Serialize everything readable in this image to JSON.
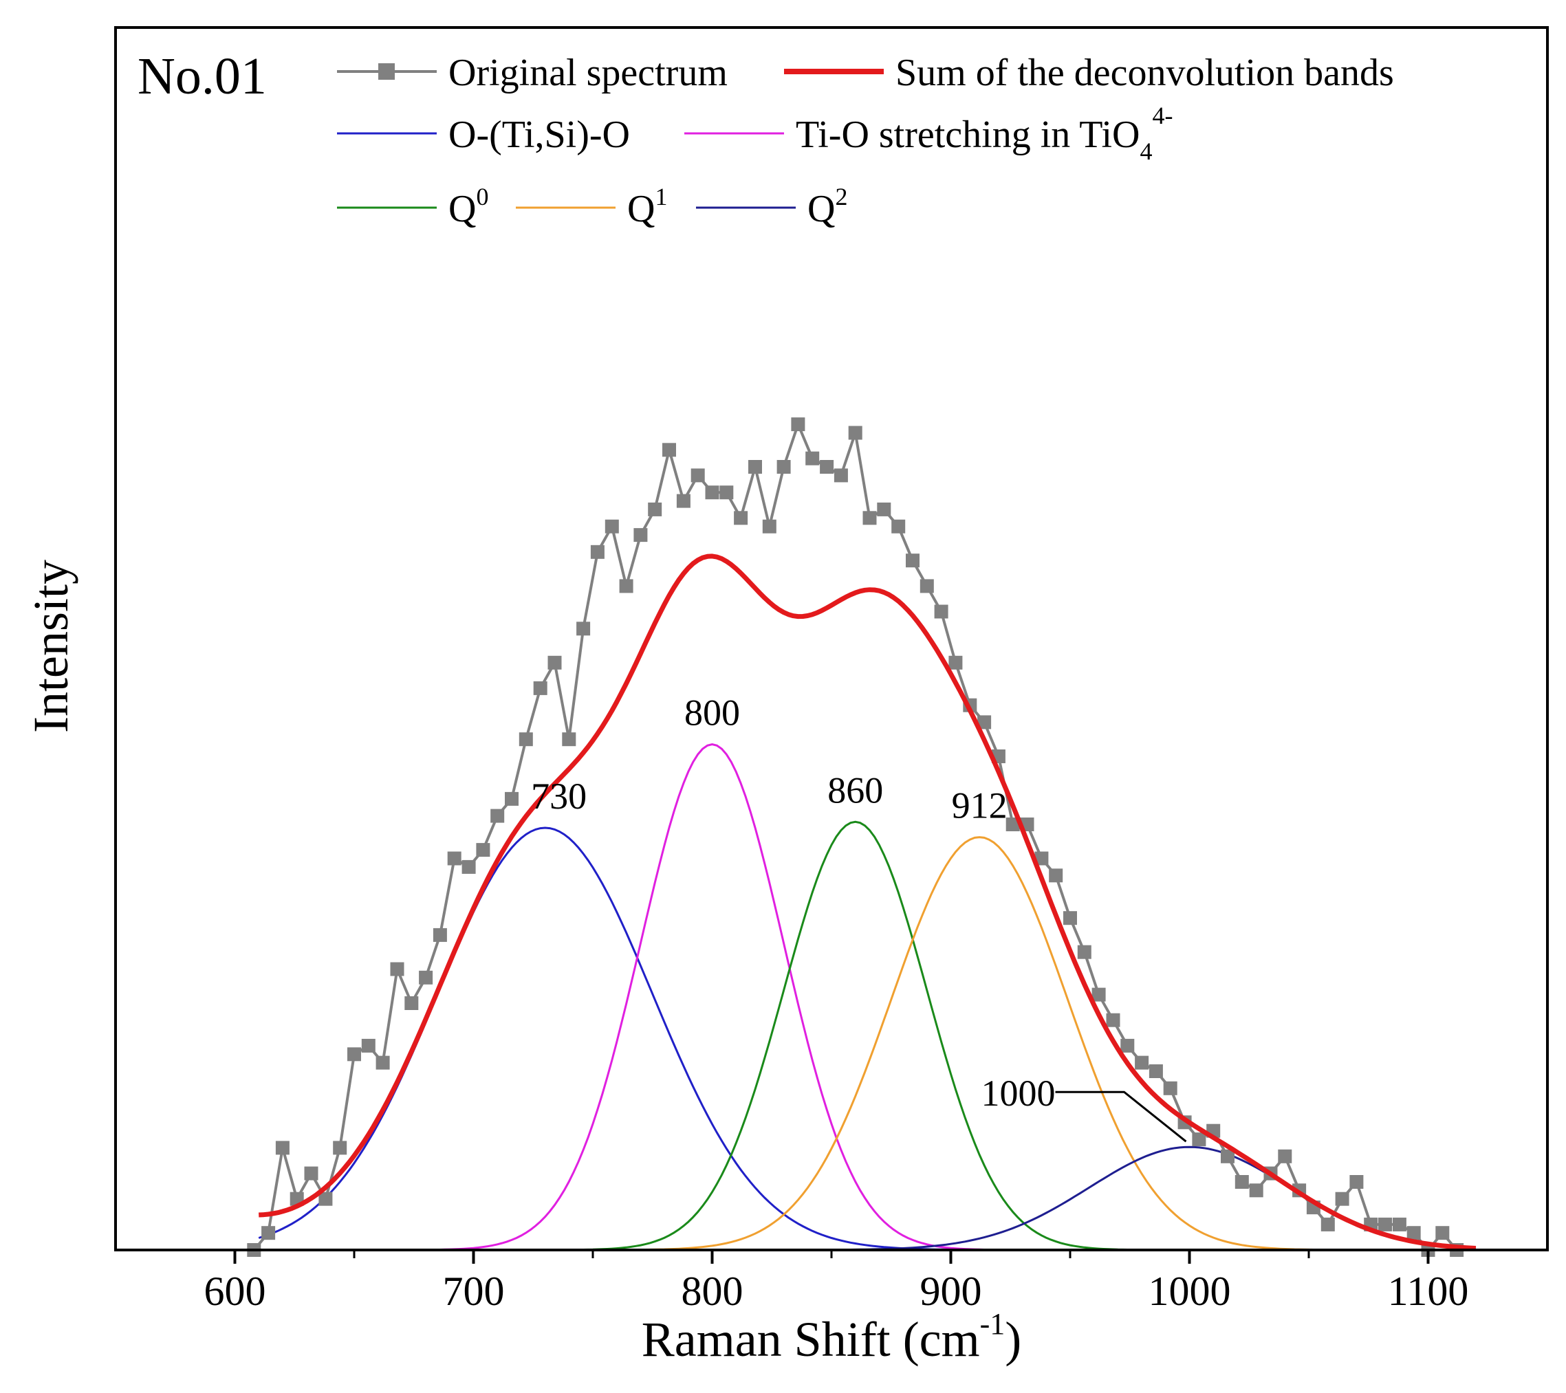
{
  "chart_data": {
    "type": "line",
    "panel_label": "No.01",
    "xlabel": "Raman Shift (cm",
    "xlabel_sup": "-1",
    "xlabel_close": ")",
    "ylabel": "Intensity",
    "xlim": [
      550,
      1150
    ],
    "ylim": [
      0,
      1
    ],
    "x_ticks": [
      600,
      700,
      800,
      900,
      1000,
      1100
    ],
    "x_minor_ticks": [
      650,
      750,
      850,
      950,
      1050
    ],
    "grid": false,
    "legend_position": "top",
    "legend": {
      "original": "Original spectrum",
      "sum": "Sum of the deconvolution bands",
      "otisio": "O-(Ti,Si)-O",
      "tio": "Ti-O stretching in TiO",
      "tio_sub": "4",
      "tio_sup": "4-",
      "q": "Q",
      "q0_sup": "0",
      "q1_sup": "1",
      "q2_sup": "2"
    },
    "colors": {
      "original": "#808080",
      "sum": "#e31a1c",
      "otisio": "#2020c8",
      "tio": "#e020e0",
      "q0": "#1a8a1a",
      "q1": "#f0a030",
      "q2": "#1e1e90"
    },
    "bands": [
      {
        "key": "otisio",
        "center": 730,
        "height": 0.496,
        "sigma": 45,
        "label": "730"
      },
      {
        "key": "tio",
        "center": 800,
        "height": 0.594,
        "sigma": 30,
        "label": "800"
      },
      {
        "key": "q0",
        "center": 860,
        "height": 0.503,
        "sigma": 30,
        "label": "860"
      },
      {
        "key": "q1",
        "center": 912,
        "height": 0.485,
        "sigma": 37,
        "label": "912"
      },
      {
        "key": "q2",
        "center": 1000,
        "height": 0.121,
        "sigma": 42,
        "label": "1000"
      }
    ],
    "original_spectrum": {
      "x": [
        608,
        614,
        620,
        626,
        632,
        638,
        644,
        650,
        656,
        662,
        668,
        674,
        680,
        686,
        692,
        698,
        704,
        710,
        716,
        722,
        728,
        734,
        740,
        746,
        752,
        758,
        764,
        770,
        776,
        782,
        788,
        794,
        800,
        806,
        812,
        818,
        824,
        830,
        836,
        842,
        848,
        854,
        860,
        866,
        872,
        878,
        884,
        890,
        896,
        902,
        908,
        914,
        920,
        926,
        932,
        938,
        944,
        950,
        956,
        962,
        968,
        974,
        980,
        986,
        992,
        998,
        1004,
        1010,
        1016,
        1022,
        1028,
        1034,
        1040,
        1046,
        1052,
        1058,
        1064,
        1070,
        1076,
        1082,
        1088,
        1094,
        1100,
        1106,
        1112
      ],
      "y": [
        0.0,
        0.02,
        0.12,
        0.06,
        0.09,
        0.06,
        0.12,
        0.23,
        0.24,
        0.22,
        0.33,
        0.29,
        0.32,
        0.37,
        0.46,
        0.45,
        0.47,
        0.51,
        0.53,
        0.6,
        0.66,
        0.69,
        0.6,
        0.73,
        0.82,
        0.85,
        0.78,
        0.84,
        0.87,
        0.94,
        0.88,
        0.91,
        0.89,
        0.89,
        0.86,
        0.92,
        0.85,
        0.92,
        0.97,
        0.93,
        0.92,
        0.91,
        0.96,
        0.86,
        0.87,
        0.85,
        0.81,
        0.78,
        0.75,
        0.69,
        0.64,
        0.62,
        0.58,
        0.5,
        0.5,
        0.46,
        0.44,
        0.39,
        0.35,
        0.3,
        0.27,
        0.24,
        0.22,
        0.21,
        0.19,
        0.15,
        0.13,
        0.14,
        0.11,
        0.08,
        0.07,
        0.09,
        0.11,
        0.07,
        0.05,
        0.03,
        0.06,
        0.08,
        0.03,
        0.03,
        0.03,
        0.02,
        0.0,
        0.02,
        0.0
      ]
    },
    "sum_curve": {
      "x_range": [
        610,
        1120
      ],
      "baseline": 0.027,
      "baseline_decay": 35
    }
  }
}
